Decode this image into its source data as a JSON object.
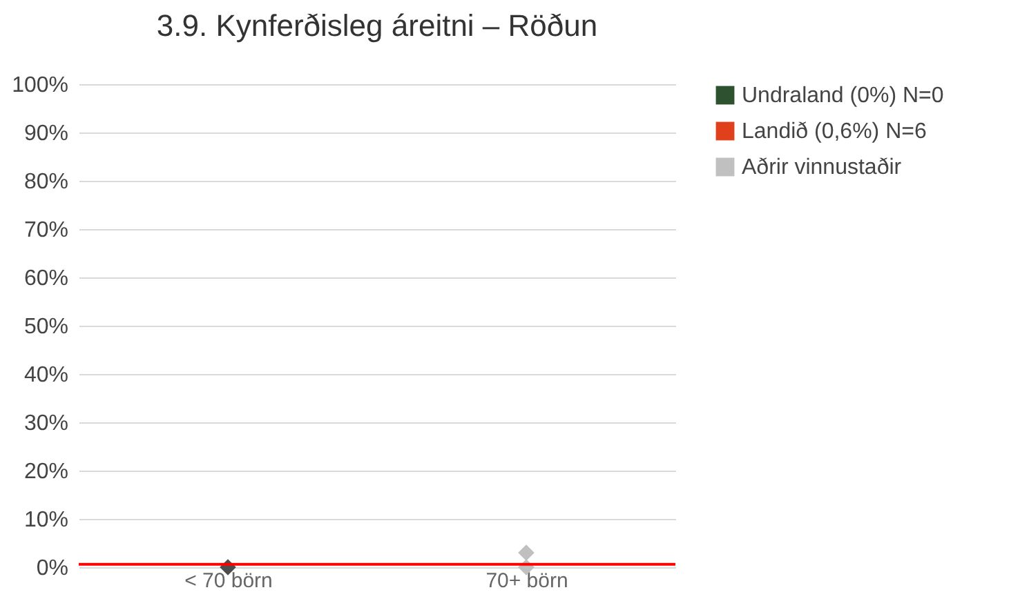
{
  "chart_data": {
    "type": "scatter",
    "title": "3.9. Kynferðisleg áreitni – Röðun",
    "categories": [
      "< 70 börn",
      "70+ börn"
    ],
    "series": [
      {
        "name": "Undraland (0%) N=0",
        "color": "#2e5230",
        "values": [
          null,
          null
        ]
      },
      {
        "name": "Landið (0,6%) N=6",
        "color": "#e0401c",
        "values": [
          null,
          null
        ]
      },
      {
        "name": "Aðrir vinnustaðir",
        "color": "#c0c0c0",
        "x": [
          "70+ börn",
          "70+ börn"
        ],
        "values": [
          0,
          3
        ]
      },
      {
        "color": "#4d4d4d",
        "values": [
          0,
          null
        ]
      }
    ],
    "ref_lines": [
      {
        "axis": "y",
        "value": 0.6,
        "color": "#ff0000"
      }
    ],
    "ylim": [
      0,
      100
    ],
    "yticks": [
      {
        "value": 0,
        "label": "0%"
      },
      {
        "value": 10,
        "label": "10%"
      },
      {
        "value": 20,
        "label": "20%"
      },
      {
        "value": 30,
        "label": "30%"
      },
      {
        "value": 40,
        "label": "40%"
      },
      {
        "value": 50,
        "label": "50%"
      },
      {
        "value": 60,
        "label": "60%"
      },
      {
        "value": 70,
        "label": "70%"
      },
      {
        "value": 80,
        "label": "80%"
      },
      {
        "value": 90,
        "label": "90%"
      },
      {
        "value": 100,
        "label": "100%"
      }
    ],
    "grid": "y",
    "legend": "right",
    "marker": "diamond"
  }
}
